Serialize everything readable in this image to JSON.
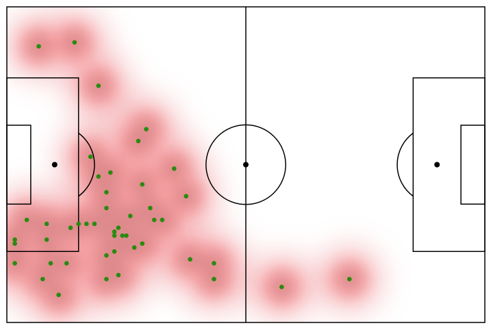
{
  "chart_data": {
    "type": "scatter",
    "title": "",
    "xlabel": "",
    "ylabel": "",
    "pitch": {
      "length": 120,
      "width": 80,
      "markings": "standard"
    },
    "xlim": [
      0,
      120
    ],
    "ylim": [
      0,
      80
    ],
    "grid": false,
    "heatmap": {
      "kind": "kde",
      "cmap": "reds",
      "color_low": "#f5b8bb",
      "color_high": "#ff1a1a",
      "center_color": "#8a4a4a"
    },
    "series": [
      {
        "marker_color": "#2a8a10",
        "points": [
          [
            8,
            70
          ],
          [
            17,
            71
          ],
          [
            23,
            60
          ],
          [
            35,
            49
          ],
          [
            33,
            46
          ],
          [
            21,
            42
          ],
          [
            26,
            38
          ],
          [
            23,
            37
          ],
          [
            25,
            33
          ],
          [
            34,
            35
          ],
          [
            42,
            39
          ],
          [
            45,
            32
          ],
          [
            36,
            29
          ],
          [
            31,
            27
          ],
          [
            37,
            26
          ],
          [
            39,
            26
          ],
          [
            25,
            29
          ],
          [
            18,
            25
          ],
          [
            5,
            26
          ],
          [
            10,
            25
          ],
          [
            2,
            21
          ],
          [
            10,
            21
          ],
          [
            16,
            24
          ],
          [
            20,
            25
          ],
          [
            22,
            25
          ],
          [
            27,
            22
          ],
          [
            29,
            22
          ],
          [
            30,
            22
          ],
          [
            27,
            23
          ],
          [
            28,
            24
          ],
          [
            32,
            19
          ],
          [
            34,
            20
          ],
          [
            25,
            17
          ],
          [
            27,
            18
          ],
          [
            2,
            15
          ],
          [
            11,
            15
          ],
          [
            15,
            15
          ],
          [
            9,
            11
          ],
          [
            25,
            11
          ],
          [
            28,
            12
          ],
          [
            13,
            7
          ],
          [
            46,
            16
          ],
          [
            52,
            15
          ],
          [
            52,
            11
          ],
          [
            69,
            9
          ],
          [
            86,
            11
          ],
          [
            2,
            20
          ]
        ]
      }
    ]
  }
}
